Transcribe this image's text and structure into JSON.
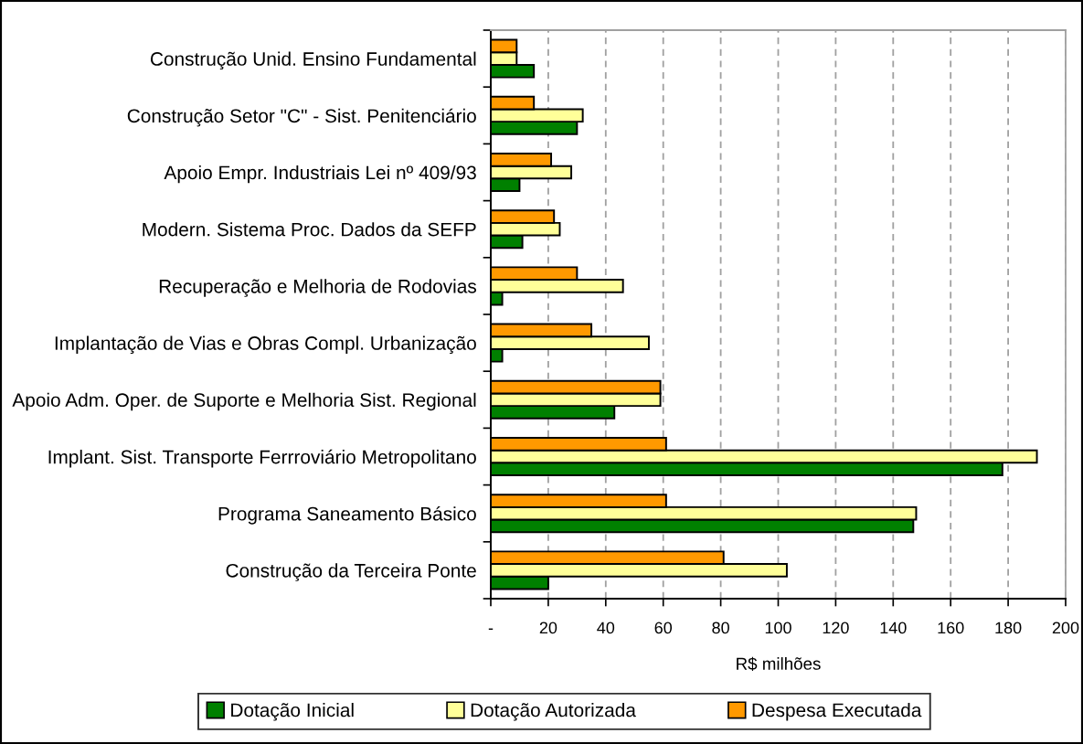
{
  "chart_data": {
    "type": "bar",
    "orientation": "horizontal",
    "categories": [
      "Construção Unid. Ensino Fundamental",
      "Construção Setor \"C\" - Sist. Penitenciário",
      "Apoio Empr. Industriais Lei nº 409/93",
      "Modern. Sistema Proc. Dados da SEFP",
      "Recuperação e Melhoria de Rodovias",
      "Implantação de Vias e Obras Compl. Urbanização",
      "Apoio Adm. Oper. de Suporte e Melhoria Sist. Regional",
      "Implant. Sist. Transporte Ferrroviário Metropolitano",
      "Programa Saneamento Básico",
      "Construção da Terceira Ponte"
    ],
    "series": [
      {
        "name": "Dotação Inicial",
        "color": "#008000",
        "values": [
          15,
          30,
          10,
          11,
          4,
          4,
          43,
          178,
          147,
          20
        ]
      },
      {
        "name": "Dotação Autorizada",
        "color": "#ffff99",
        "values": [
          9,
          32,
          28,
          24,
          46,
          55,
          59,
          190,
          148,
          103
        ]
      },
      {
        "name": "Despesa Executada",
        "color": "#ff9900",
        "values": [
          9,
          15,
          21,
          22,
          30,
          35,
          59,
          61,
          61,
          81
        ]
      }
    ],
    "xlabel": "R$ milhões",
    "xlim": [
      0,
      200
    ],
    "xticks": [
      {
        "value": 0,
        "label": "-"
      },
      20,
      40,
      60,
      80,
      100,
      120,
      140,
      160,
      180,
      200
    ],
    "grid": "x",
    "legend": "bottom"
  }
}
